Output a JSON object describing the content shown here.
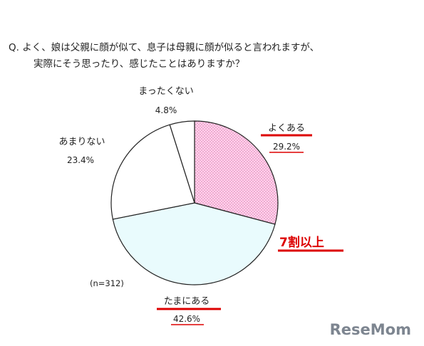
{
  "chart_data": {
    "type": "pie",
    "question": "Q. よく、娘は父親に顔が似て、息子は母親に顔が似ると言われますが、",
    "question_line2": "実際にそう思ったり、感じたことはありますか？",
    "sample": "(n=312)",
    "callout": "7割以上",
    "slices": [
      {
        "label": "よくある",
        "value": 29.2,
        "value_text": "29.2%",
        "color": "#ffd4ec",
        "pattern": true
      },
      {
        "label": "たまにある",
        "value": 42.6,
        "value_text": "42.6%",
        "color": "#e9fbfd",
        "pattern": false
      },
      {
        "label": "あまりない",
        "value": 23.4,
        "value_text": "23.4%",
        "color": "#ffffff",
        "pattern": false
      },
      {
        "label": "まったくない",
        "value": 4.8,
        "value_text": "4.8%",
        "color": "#ffffff",
        "pattern": false
      }
    ],
    "highlight_color": "#dd0000"
  },
  "watermark": "ReseMom"
}
